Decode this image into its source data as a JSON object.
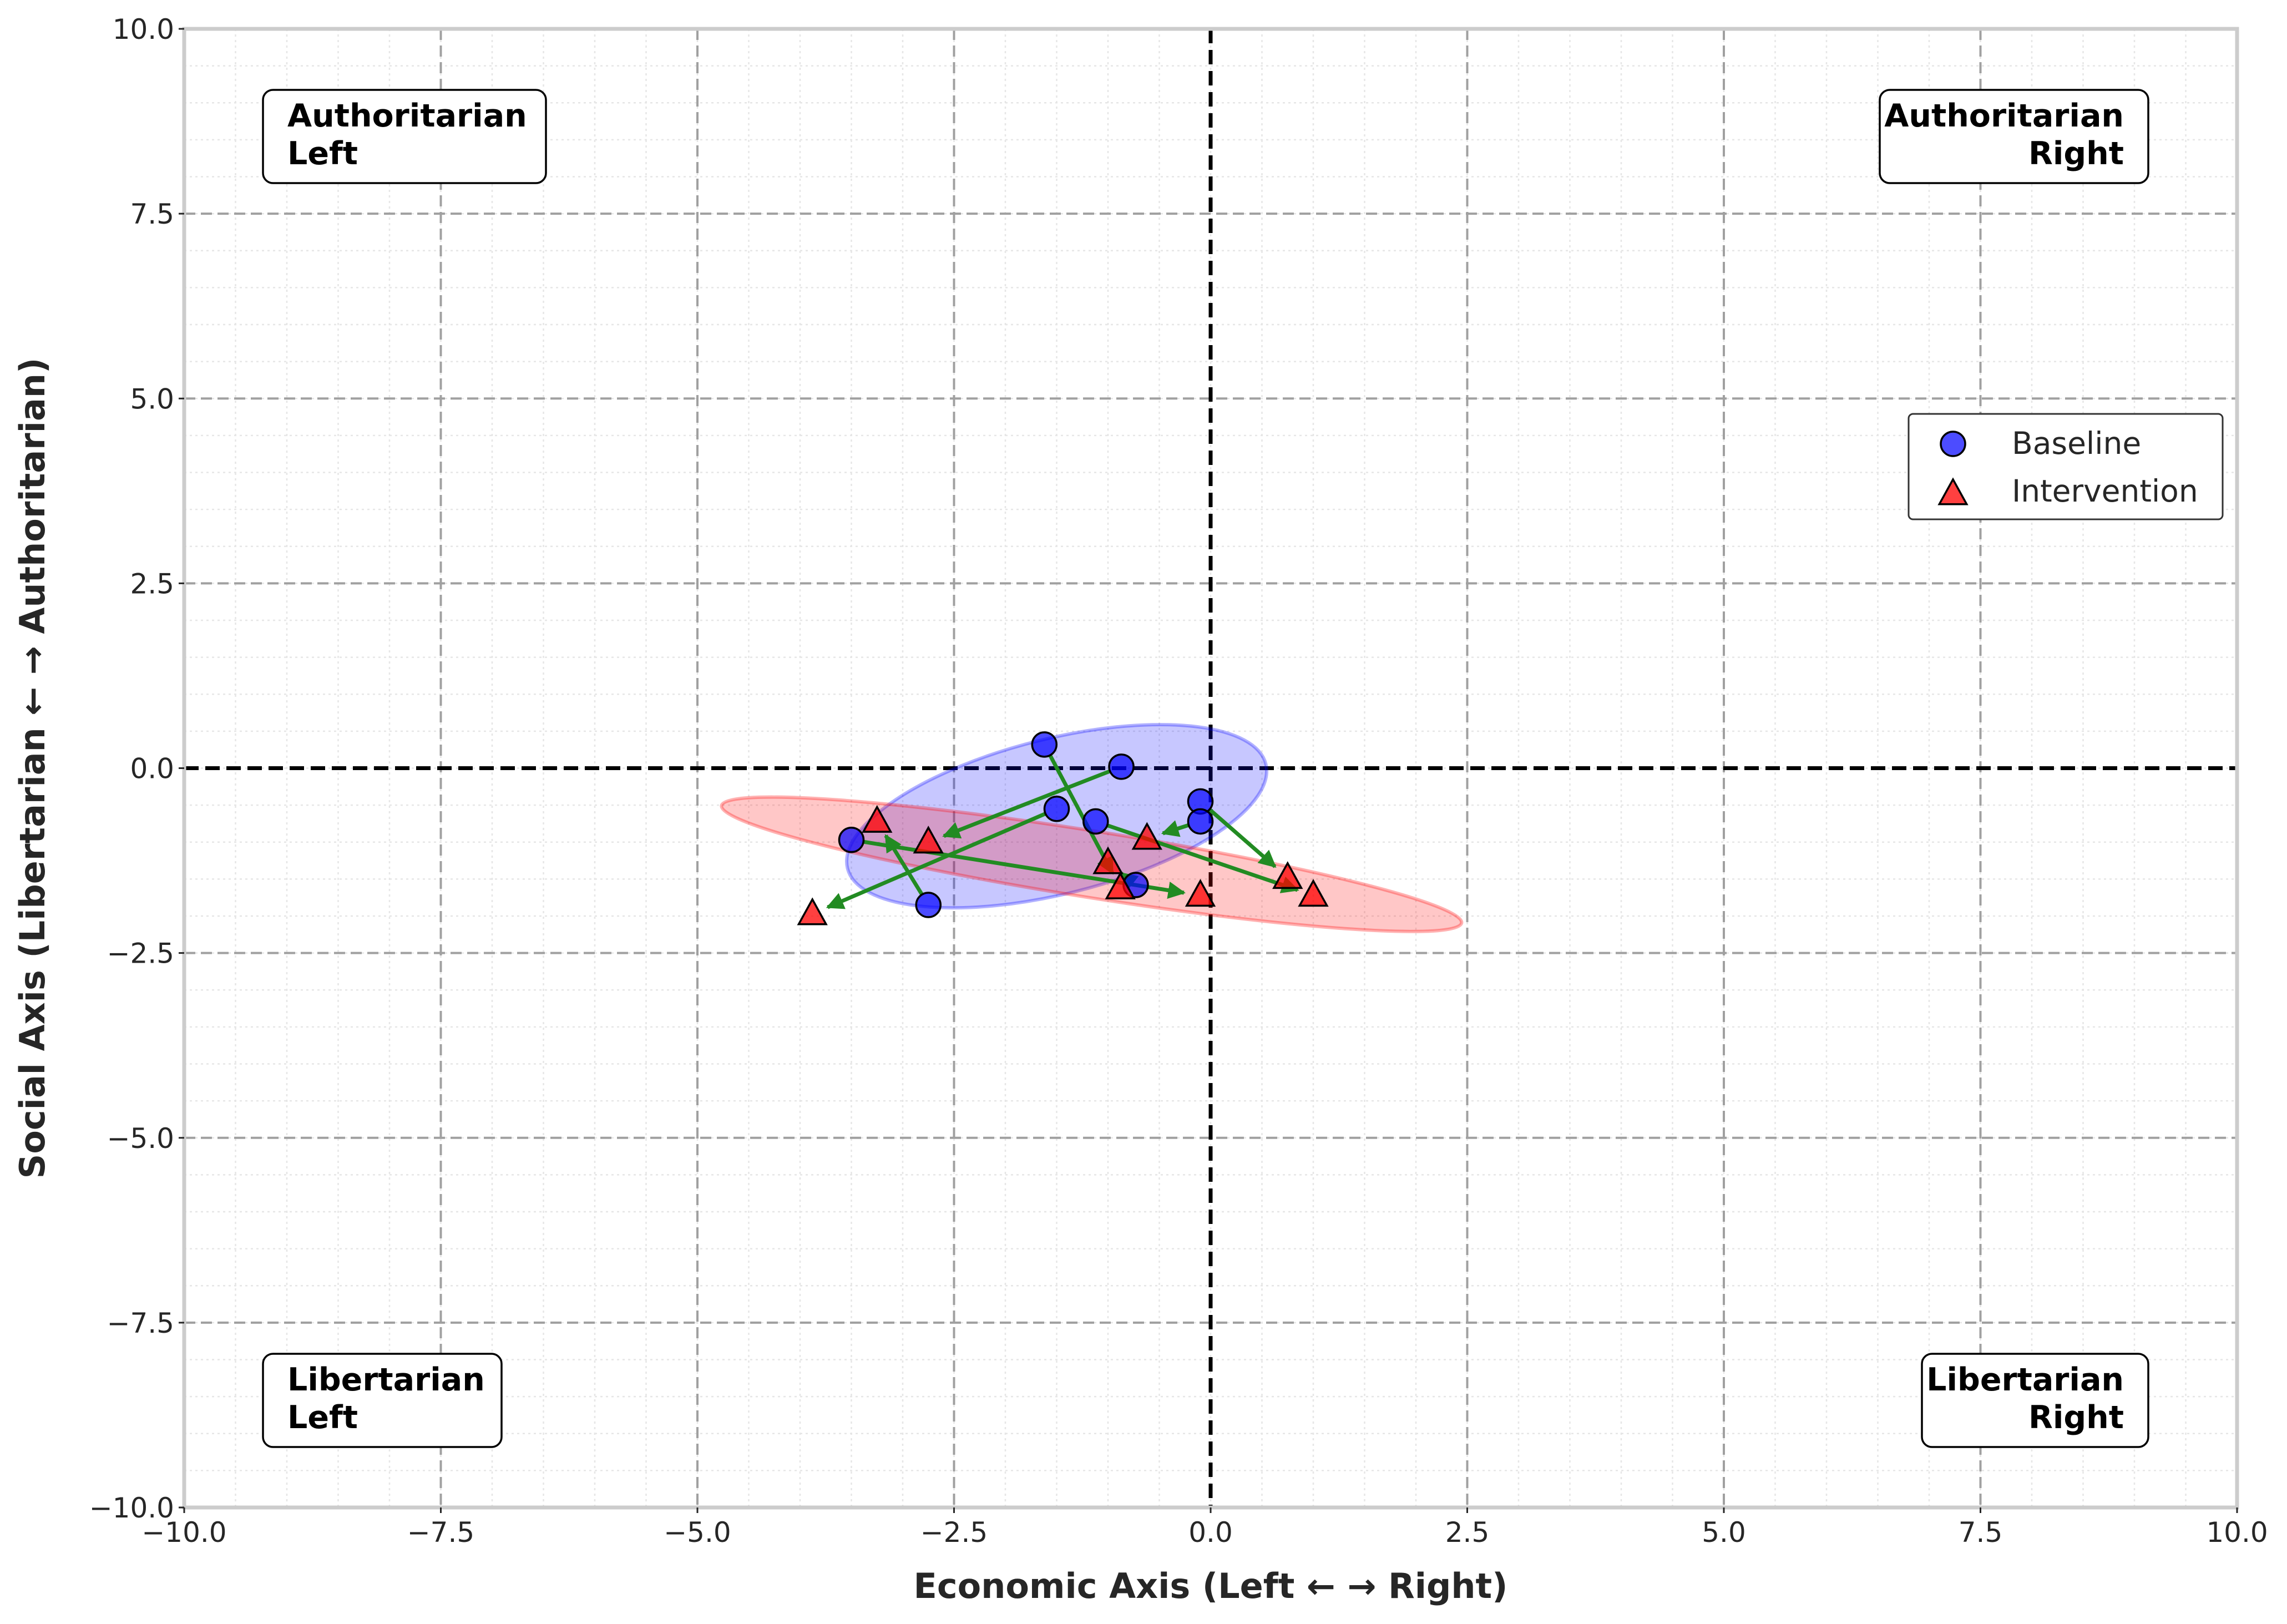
{
  "chart_data": {
    "type": "scatter",
    "title": "",
    "xlabel": "Economic Axis (Left ← → Right)",
    "ylabel": "Social Axis (Libertarian ← → Authoritarian)",
    "xlim": [
      -10,
      10
    ],
    "ylim": [
      -10,
      10
    ],
    "xticks": [
      -10,
      -7.5,
      -5,
      -2.5,
      0,
      2.5,
      5,
      7.5,
      10
    ],
    "yticks": [
      -10,
      -7.5,
      -5,
      -2.5,
      0,
      2.5,
      5,
      7.5,
      10
    ],
    "xtick_labels": [
      "−10.0",
      "−7.5",
      "−5.0",
      "−2.5",
      "0.0",
      "2.5",
      "5.0",
      "7.5",
      "10.0"
    ],
    "ytick_labels": [
      "−10.0",
      "−7.5",
      "−5.0",
      "−2.5",
      "0.0",
      "2.5",
      "5.0",
      "7.5",
      "10.0"
    ],
    "grid": true,
    "legend_position": "center-right",
    "quadrant_labels": [
      {
        "lines": [
          "Authoritarian",
          "Left"
        ],
        "corner": "top-left"
      },
      {
        "lines": [
          "Authoritarian",
          "Right"
        ],
        "corner": "top-right"
      },
      {
        "lines": [
          "Libertarian",
          "Left"
        ],
        "corner": "bottom-left"
      },
      {
        "lines": [
          "Libertarian",
          "Right"
        ],
        "corner": "bottom-right"
      }
    ],
    "series": [
      {
        "name": "Baseline",
        "marker": "circle",
        "color": "#0000ff",
        "points": [
          [
            -1.62,
            0.32
          ],
          [
            -0.87,
            0.02
          ],
          [
            -0.1,
            -0.45
          ],
          [
            -0.1,
            -0.72
          ],
          [
            -1.12,
            -0.72
          ],
          [
            -1.5,
            -0.55
          ],
          [
            -3.5,
            -0.97
          ],
          [
            -2.75,
            -1.85
          ],
          [
            -0.73,
            -1.58
          ]
        ]
      },
      {
        "name": "Intervention",
        "marker": "triangle",
        "color": "#ff0000",
        "points": [
          [
            -3.25,
            -0.72
          ],
          [
            -2.75,
            -1.0
          ],
          [
            -3.88,
            -1.97
          ],
          [
            -1.0,
            -1.28
          ],
          [
            -0.62,
            -0.95
          ],
          [
            -0.88,
            -1.62
          ],
          [
            -0.1,
            -1.72
          ],
          [
            0.75,
            -1.48
          ],
          [
            1.0,
            -1.72
          ]
        ]
      }
    ],
    "arrows": [
      {
        "from": [
          -1.62,
          0.32
        ],
        "to": [
          -0.88,
          -1.62
        ]
      },
      {
        "from": [
          -0.87,
          0.02
        ],
        "to": [
          -2.75,
          -1.0
        ]
      },
      {
        "from": [
          -0.1,
          -0.45
        ],
        "to": [
          0.75,
          -1.48
        ]
      },
      {
        "from": [
          -0.1,
          -0.72
        ],
        "to": [
          -0.62,
          -0.95
        ]
      },
      {
        "from": [
          -1.12,
          -0.72
        ],
        "to": [
          1.0,
          -1.72
        ]
      },
      {
        "from": [
          -1.5,
          -0.55
        ],
        "to": [
          -3.88,
          -1.97
        ]
      },
      {
        "from": [
          -3.5,
          -0.97
        ],
        "to": [
          -0.1,
          -1.72
        ]
      },
      {
        "from": [
          -2.75,
          -1.85
        ],
        "to": [
          -3.25,
          -0.72
        ]
      },
      {
        "from": [
          -0.73,
          -1.58
        ],
        "to": [
          -1.0,
          -1.28
        ]
      }
    ],
    "ellipses": [
      {
        "series": "Baseline",
        "center": [
          -1.5,
          -0.65
        ],
        "width": 4.2,
        "height": 2.1,
        "angle": 14,
        "color": "#0000ff"
      },
      {
        "series": "Intervention",
        "center": [
          -1.16,
          -1.3
        ],
        "width": 7.3,
        "height": 0.9,
        "angle": -9,
        "color": "#ff0000"
      }
    ],
    "arrow_color": "#228b22",
    "colors": {
      "zero_line": "#000000",
      "grid": "#a0a0a0",
      "frame": "#cccccc"
    }
  }
}
